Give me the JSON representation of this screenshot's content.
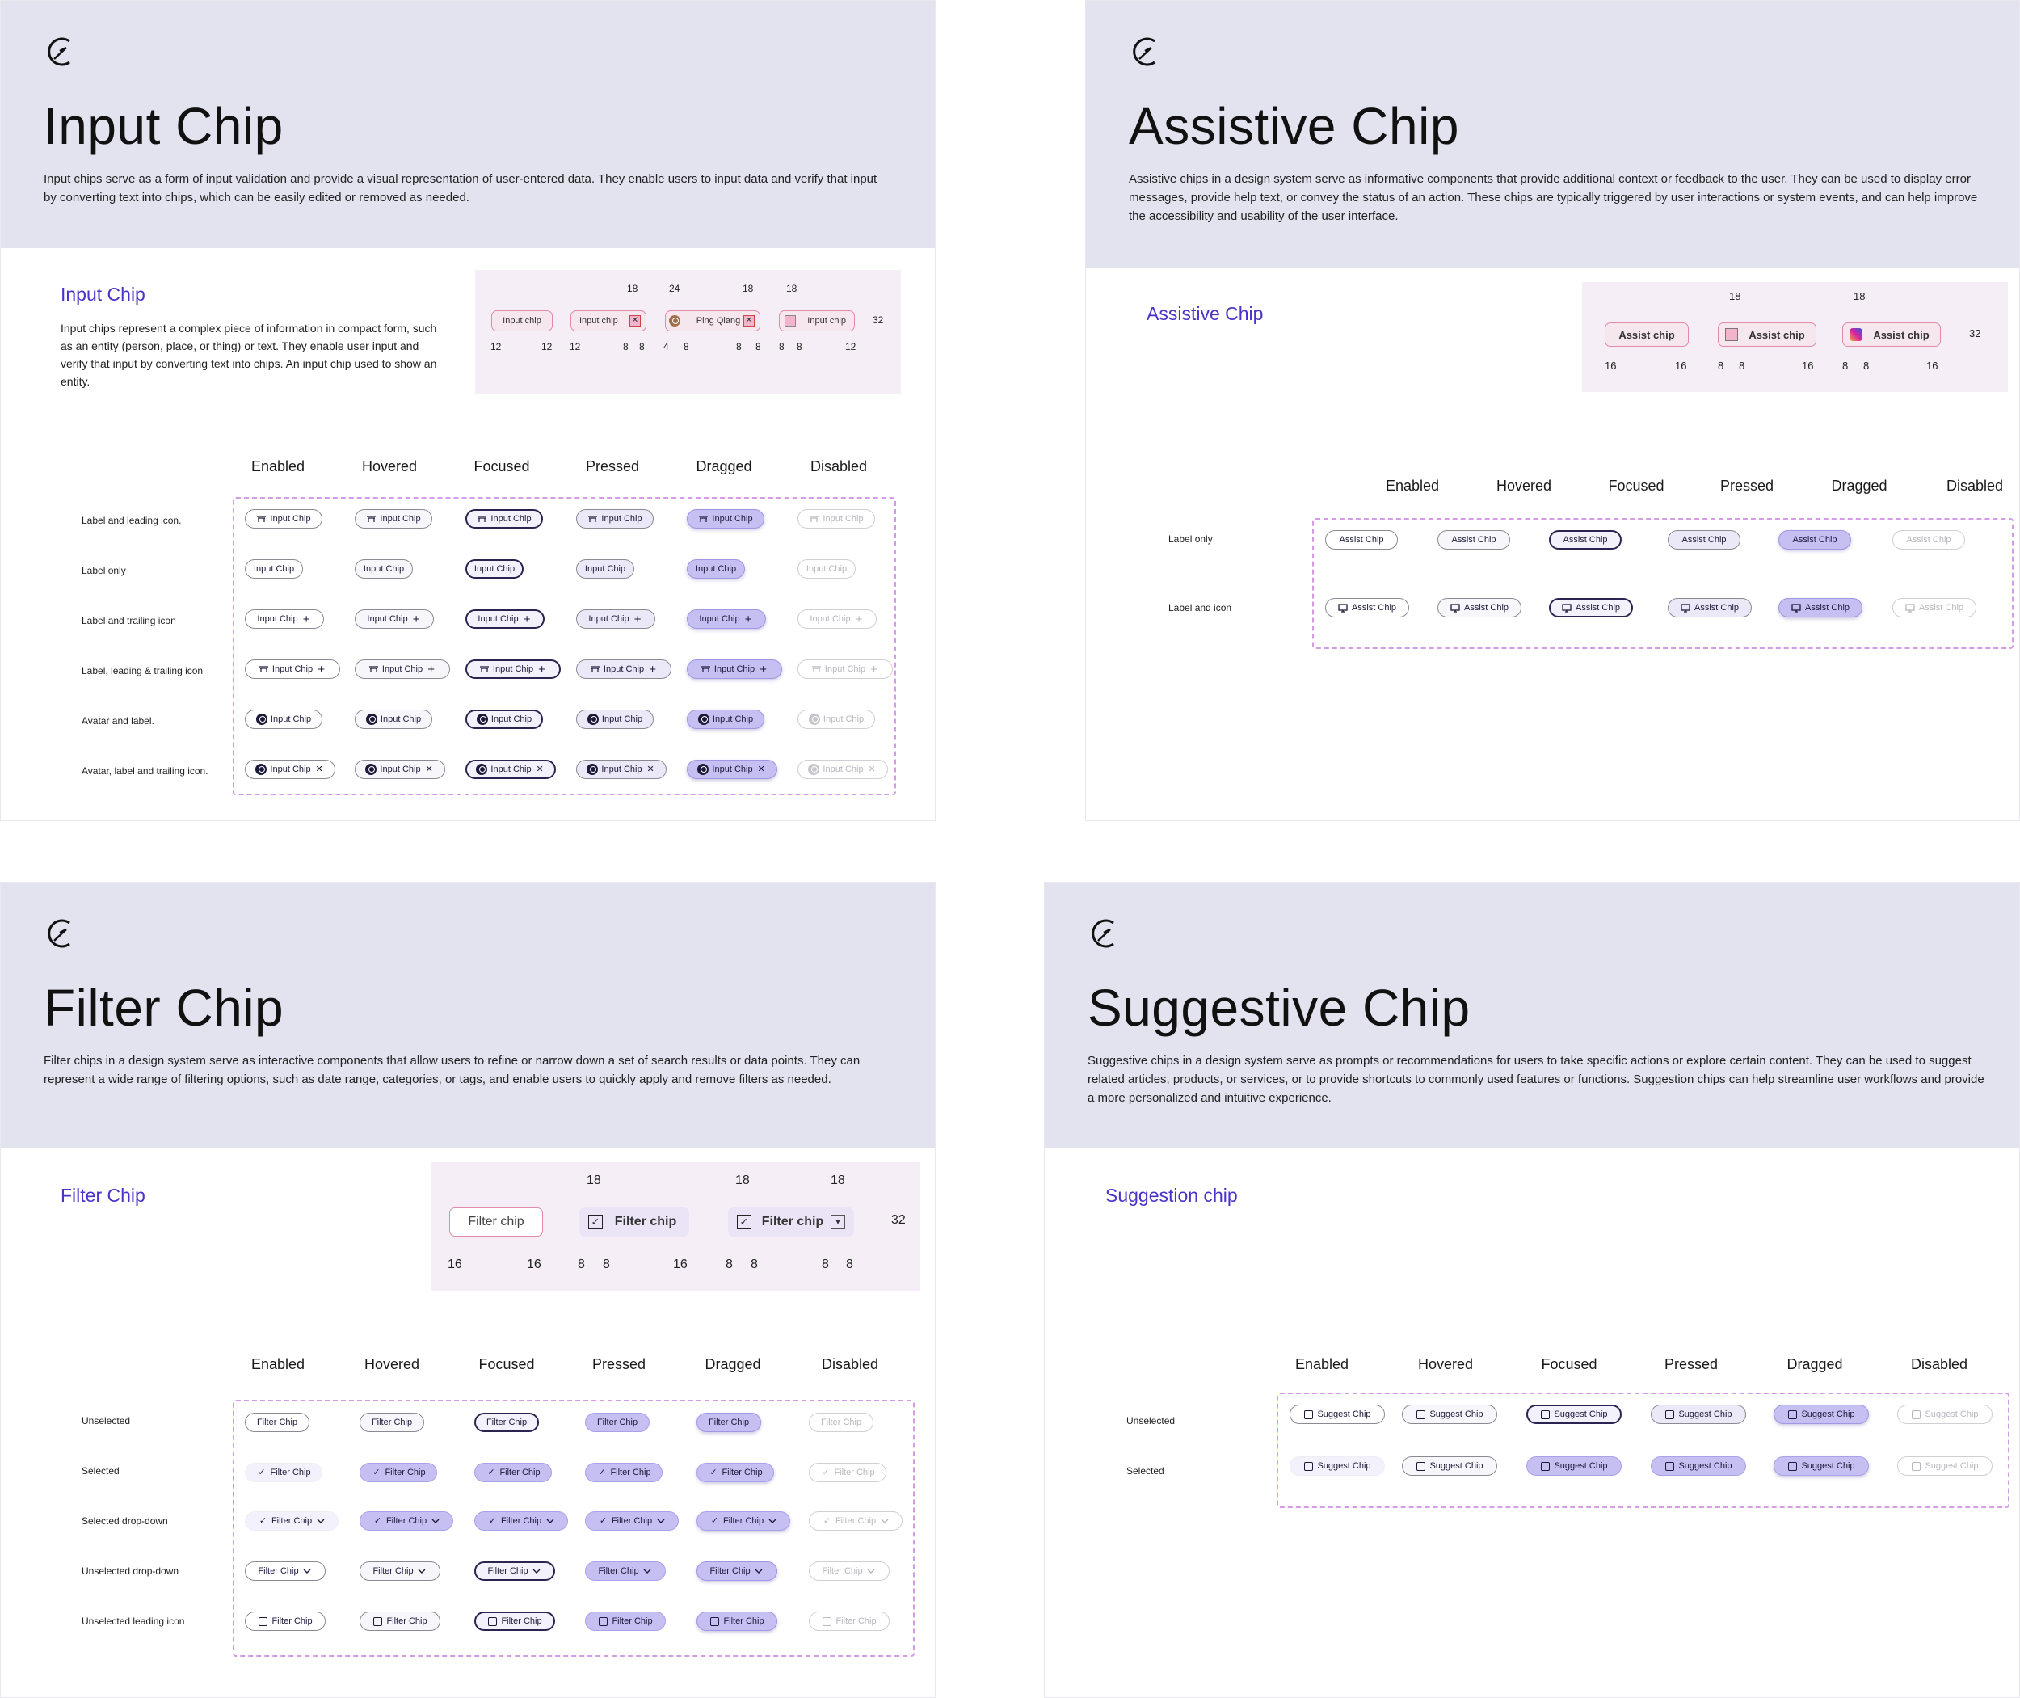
{
  "states": [
    "Enabled",
    "Hovered",
    "Focused",
    "Pressed",
    "Dragged",
    "Disabled"
  ],
  "input": {
    "title": "Input Chip",
    "description": "Input chips serve as a form of input validation and provide a visual representation of user-entered data. They enable users to input data and verify that input by converting text into chips, which can be easily edited or removed as needed.",
    "section_title": "Input Chip",
    "section_desc": "Input chips represent a complex piece of information in compact form, such as an entity (person, place, or thing) or text. They enable user input and verify that input by converting text into chips. An input chip used to show an entity.",
    "chip_label": "Input Chip",
    "rows": [
      "Label and leading icon.",
      "Label only",
      "Label and trailing icon",
      "Label, leading & trailing icon",
      "Avatar and label.",
      "Avatar, label and trailing icon."
    ],
    "spec": {
      "c1": "Input chip",
      "c2": "Input chip",
      "c3": "Ping Qiang",
      "c4": "Input chip",
      "top": [
        "18",
        "24",
        "18",
        "18"
      ],
      "bottom": [
        "12",
        "12",
        "12",
        "8",
        "8",
        "4",
        "8",
        "8",
        "8",
        "8",
        "8",
        "12"
      ],
      "height": "32"
    }
  },
  "assist": {
    "title": "Assistive Chip",
    "description": "Assistive chips in a design system serve as informative components that provide additional context or feedback to the user. They can be used to display error messages, provide help text, or convey the status of an action. These chips are typically triggered by user interactions or system events, and can help improve the accessibility and usability of the user interface.",
    "section_title": "Assistive Chip",
    "chip_label": "Assist Chip",
    "rows": [
      "Label only",
      "Label and icon"
    ],
    "spec": {
      "c1": "Assist chip",
      "c2": "Assist chip",
      "c3": "Assist chip",
      "top": [
        "18",
        "18"
      ],
      "bottom": [
        "16",
        "16",
        "8",
        "8",
        "16",
        "8",
        "8",
        "16"
      ],
      "height": "32"
    }
  },
  "filter": {
    "title": "Filter Chip",
    "description": "Filter chips in a design system serve as interactive components that allow users to refine or narrow down a set of search results or data points. They can represent a wide range of filtering options, such as date range, categories, or tags, and enable users to quickly apply and remove filters as needed.",
    "section_title": "Filter Chip",
    "chip_label": "Filter Chip",
    "rows": [
      "Unselected",
      "Selected",
      "Selected drop-down",
      "Unselected drop-down",
      "Unselected leading icon"
    ],
    "spec": {
      "c1": "Filter chip",
      "c2": "Filter chip",
      "c3": "Filter chip",
      "top": [
        "18",
        "18",
        "18"
      ],
      "bottom": [
        "16",
        "16",
        "8",
        "8",
        "16",
        "8",
        "8",
        "8",
        "8"
      ],
      "height": "32"
    }
  },
  "suggest": {
    "title": "Suggestive Chip",
    "description": "Suggestive chips in a design system serve as prompts or recommendations for users to take specific actions or explore certain content. They can be used to suggest related articles, products, or services, or to provide shortcuts to commonly used features or functions. Suggestion chips can help streamline user workflows and provide a more personalized and intuitive experience.",
    "section_title": "Suggestion chip",
    "chip_label": "Suggest Chip",
    "rows": [
      "Unselected",
      "Selected"
    ]
  },
  "colors": {
    "accent": "#4b33c9",
    "header_bg": "#e3e2ef",
    "dragged": "#c5bff2",
    "dashed": "#d59be6",
    "spec_pink": "#f1b4cc"
  },
  "icons": {
    "leading": "pin-icon",
    "trailing": "plus-icon",
    "close": "close-icon",
    "check": "check-icon",
    "chevron": "chevron-down-icon",
    "doc": "document-icon",
    "monitor": "monitor-icon",
    "clipboard": "clipboard-icon"
  }
}
